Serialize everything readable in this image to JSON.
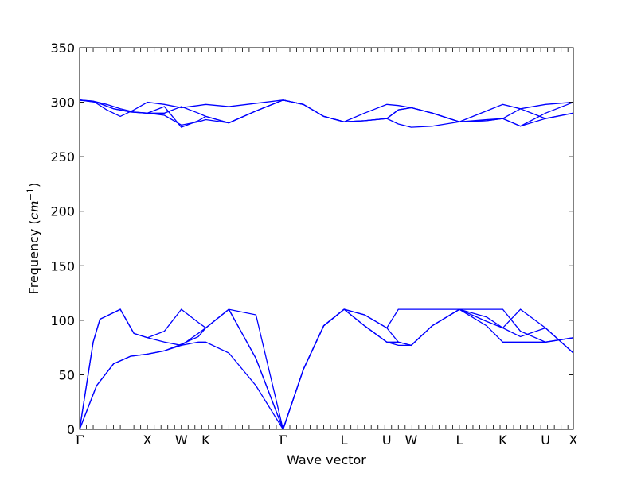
{
  "chart_data": {
    "type": "line",
    "title": "",
    "xlabel": "Wave vector",
    "ylabel_text": "Frequency (",
    "ylabel_unit": "cm",
    "ylabel_exp": "−1",
    "ylabel_close": ")",
    "ylim": [
      0,
      350
    ],
    "yticks": [
      0,
      50,
      100,
      150,
      200,
      250,
      300,
      350
    ],
    "xlim": [
      0,
      7.28
    ],
    "xticks": [
      {
        "x": 0.0,
        "label": "Γ"
      },
      {
        "x": 1.0,
        "label": "X"
      },
      {
        "x": 1.5,
        "label": "W"
      },
      {
        "x": 1.86,
        "label": "K"
      },
      {
        "x": 3.0,
        "label": "Γ"
      },
      {
        "x": 3.9,
        "label": "L"
      },
      {
        "x": 4.53,
        "label": "U"
      },
      {
        "x": 4.89,
        "label": "W"
      },
      {
        "x": 5.6,
        "label": "L"
      },
      {
        "x": 6.24,
        "label": "K"
      },
      {
        "x": 6.87,
        "label": "U"
      },
      {
        "x": 7.28,
        "label": "X"
      }
    ],
    "line_color": "#0000ff",
    "grid": false,
    "series": [
      {
        "x": [
          0,
          0.25,
          0.5,
          0.75,
          1.0,
          1.25,
          1.5,
          1.75,
          1.86,
          2.2,
          2.6,
          3.0,
          3.3,
          3.6,
          3.9,
          4.2,
          4.53,
          4.7,
          4.89,
          5.2,
          5.6,
          6.0,
          6.24,
          6.5,
          6.87,
          7.28
        ],
        "y": [
          0,
          40,
          60,
          67,
          69,
          72,
          77,
          80,
          80,
          70,
          40,
          0,
          55,
          95,
          110,
          105,
          93,
          80,
          77,
          95,
          110,
          95,
          80,
          80,
          80,
          84
        ]
      },
      {
        "x": [
          0,
          0.25,
          0.5,
          0.75,
          1.0,
          1.25,
          1.5,
          1.75,
          1.86,
          2.2,
          2.6,
          3.0,
          3.3,
          3.6,
          3.9,
          4.2,
          4.53,
          4.7,
          4.89,
          5.2,
          5.6,
          6.0,
          6.24,
          6.5,
          6.87,
          7.28
        ],
        "y": [
          0,
          40,
          60,
          67,
          69,
          72,
          78,
          85,
          93,
          110,
          65,
          0,
          55,
          95,
          110,
          95,
          80,
          80,
          77,
          95,
          110,
          103,
          93,
          110,
          93,
          70
        ]
      },
      {
        "x": [
          0,
          0.2,
          0.3,
          0.6,
          0.8,
          1.0,
          1.25,
          1.5,
          1.75,
          1.86,
          2.2,
          2.6,
          3.0,
          3.3,
          3.6,
          3.9,
          4.2,
          4.53,
          4.7,
          4.89,
          5.2,
          5.6,
          6.0,
          6.24,
          6.5,
          6.87,
          7.28
        ],
        "y": [
          0,
          80,
          101,
          110,
          88,
          84,
          80,
          77,
          88,
          93,
          110,
          65,
          0,
          55,
          95,
          110,
          105,
          93,
          110,
          110,
          110,
          110,
          110,
          110,
          90,
          80,
          84
        ]
      },
      {
        "x": [
          0,
          0.2,
          0.3,
          0.6,
          0.8,
          1.0,
          1.25,
          1.5,
          1.75,
          1.86,
          2.2,
          2.6,
          3.0,
          3.3,
          3.6,
          3.9,
          4.2,
          4.53,
          4.7,
          4.89,
          5.2,
          5.6,
          6.0,
          6.24,
          6.5,
          6.87,
          7.28
        ],
        "y": [
          0,
          80,
          101,
          110,
          88,
          84,
          90,
          110,
          98,
          93,
          110,
          105,
          0,
          55,
          95,
          110,
          95,
          80,
          77,
          77,
          95,
          110,
          99,
          93,
          85,
          93,
          70
        ]
      },
      {
        "x": [
          0,
          0.25,
          0.5,
          0.75,
          1.0,
          1.25,
          1.5,
          1.75,
          1.86,
          2.2,
          2.6,
          3.0,
          3.3,
          3.6,
          3.9,
          4.2,
          4.53,
          4.7,
          4.89,
          5.2,
          5.6,
          6.0,
          6.24,
          6.5,
          6.87,
          7.28
        ],
        "y": [
          302,
          300,
          294,
          291,
          290,
          288,
          279,
          282,
          284,
          281,
          292,
          302,
          298,
          287,
          282,
          283,
          285,
          293,
          295,
          290,
          282,
          283,
          285,
          278,
          285,
          290
        ]
      },
      {
        "x": [
          0,
          0.25,
          0.5,
          0.75,
          1.0,
          1.25,
          1.5,
          1.75,
          1.86,
          2.2,
          2.6,
          3.0,
          3.3,
          3.6,
          3.9,
          4.2,
          4.53,
          4.7,
          4.89,
          5.2,
          5.6,
          6.0,
          6.24,
          6.5,
          6.87,
          7.28
        ],
        "y": [
          302,
          300,
          294,
          291,
          290,
          290,
          296,
          290,
          287,
          281,
          292,
          302,
          298,
          287,
          282,
          283,
          285,
          280,
          277,
          278,
          282,
          284,
          285,
          294,
          285,
          290
        ]
      },
      {
        "x": [
          0,
          0.2,
          0.4,
          0.6,
          0.8,
          1.0,
          1.25,
          1.5,
          1.75,
          1.86,
          2.2,
          2.6,
          3.0,
          3.3,
          3.6,
          3.9,
          4.2,
          4.53,
          4.7,
          4.89,
          5.2,
          5.6,
          6.0,
          6.24,
          6.5,
          6.87,
          7.28
        ],
        "y": [
          302,
          301,
          293,
          287,
          293,
          300,
          298,
          295,
          297,
          298,
          296,
          299,
          302,
          298,
          287,
          282,
          290,
          298,
          297,
          295,
          290,
          282,
          292,
          298,
          294,
          298,
          300
        ]
      },
      {
        "x": [
          0,
          0.2,
          0.4,
          0.6,
          0.8,
          1.0,
          1.25,
          1.5,
          1.75,
          1.86,
          2.2,
          2.6,
          3.0,
          3.3,
          3.6,
          3.9,
          4.2,
          4.53,
          4.7,
          4.89,
          5.2,
          5.6,
          6.0,
          6.24,
          6.5,
          6.87,
          7.28
        ],
        "y": [
          302,
          301,
          298,
          294,
          291,
          290,
          296,
          277,
          283,
          287,
          281,
          292,
          302,
          298,
          287,
          282,
          283,
          285,
          293,
          295,
          290,
          282,
          283,
          285,
          278,
          290,
          300
        ]
      }
    ]
  }
}
